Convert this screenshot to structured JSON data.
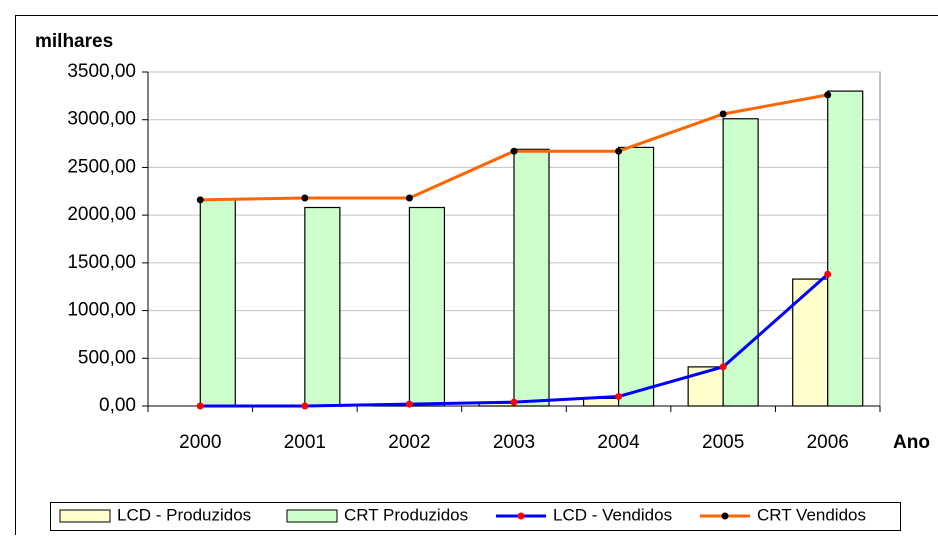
{
  "chart_data": {
    "type": "bar",
    "y_label": "milhares",
    "x_label": "Ano",
    "categories": [
      "2000",
      "2001",
      "2002",
      "2003",
      "2004",
      "2005",
      "2006"
    ],
    "series": [
      {
        "name": "LCD - Produzidos",
        "type": "bar",
        "color": "#ffffcc",
        "values": [
          0,
          0,
          10,
          30,
          80,
          410,
          1330
        ]
      },
      {
        "name": "CRT Produzidos",
        "type": "bar",
        "color": "#ccffcc",
        "values": [
          2160,
          2080,
          2080,
          2690,
          2710,
          3010,
          3300
        ]
      },
      {
        "name": "LCD - Vendidos",
        "type": "line",
        "color": "#0000ff",
        "marker_color": "#ff0000",
        "values": [
          0,
          0,
          20,
          40,
          100,
          410,
          1380
        ]
      },
      {
        "name": "CRT Vendidos",
        "type": "line",
        "color": "#ff6600",
        "marker_color": "#000000",
        "values": [
          2160,
          2180,
          2180,
          2670,
          2670,
          3060,
          3260
        ]
      }
    ],
    "ylim": [
      0,
      3500
    ],
    "yticks": [
      {
        "value": 0,
        "label": "0,00"
      },
      {
        "value": 500,
        "label": "500,00"
      },
      {
        "value": 1000,
        "label": "1000,00"
      },
      {
        "value": 1500,
        "label": "1500,00"
      },
      {
        "value": 2000,
        "label": "2000,00"
      },
      {
        "value": 2500,
        "label": "2500,00"
      },
      {
        "value": 3000,
        "label": "3000,00"
      },
      {
        "value": 3500,
        "label": "3500,00"
      }
    ],
    "grid": true
  }
}
